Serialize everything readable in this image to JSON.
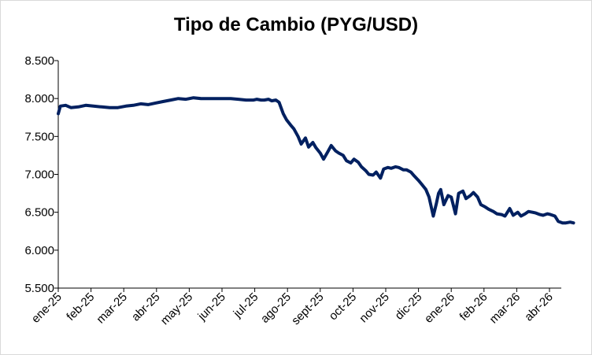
{
  "chart_data": {
    "type": "line",
    "title": "Tipo de Cambio (PYG/USD)",
    "xlabel": "",
    "ylabel": "",
    "ylim": [
      5500,
      8500
    ],
    "yticks": [
      5500,
      6000,
      6500,
      7000,
      7500,
      8000,
      8500
    ],
    "ytick_labels": [
      "5.500",
      "6.000",
      "6.500",
      "7.000",
      "7.500",
      "8.000",
      "8.500"
    ],
    "xtick_labels": [
      "ene-25",
      "feb-25",
      "mar-25",
      "abr-25",
      "may-25",
      "jun-25",
      "jul-25",
      "ago-25",
      "sept-25",
      "oct-25",
      "nov-25",
      "dic-25",
      "ene-26",
      "feb-26",
      "mar-26",
      "abr-26"
    ],
    "grid": false,
    "legend": "none",
    "line_color": "#002060",
    "series": [
      {
        "x": [
          "2025-01-01",
          "2025-01-03",
          "2025-01-08",
          "2025-01-13",
          "2025-01-20",
          "2025-01-27",
          "2025-02-03",
          "2025-02-10",
          "2025-02-17",
          "2025-02-24",
          "2025-03-03",
          "2025-03-10",
          "2025-03-17",
          "2025-03-24",
          "2025-03-31",
          "2025-04-07",
          "2025-04-14",
          "2025-04-21",
          "2025-04-28",
          "2025-05-05",
          "2025-05-12",
          "2025-05-19",
          "2025-05-26",
          "2025-06-02",
          "2025-06-09",
          "2025-06-16",
          "2025-06-23",
          "2025-06-30",
          "2025-07-03",
          "2025-07-07",
          "2025-07-10",
          "2025-07-14",
          "2025-07-17",
          "2025-07-21",
          "2025-07-24",
          "2025-07-28",
          "2025-07-31",
          "2025-08-04",
          "2025-08-07",
          "2025-08-11",
          "2025-08-14",
          "2025-08-18",
          "2025-08-21",
          "2025-08-25",
          "2025-08-28",
          "2025-09-01",
          "2025-09-04",
          "2025-09-08",
          "2025-09-11",
          "2025-09-15",
          "2025-09-18",
          "2025-09-22",
          "2025-09-25",
          "2025-09-29",
          "2025-10-02",
          "2025-10-06",
          "2025-10-09",
          "2025-10-13",
          "2025-10-16",
          "2025-10-20",
          "2025-10-23",
          "2025-10-27",
          "2025-10-30",
          "2025-11-03",
          "2025-11-06",
          "2025-11-10",
          "2025-11-13",
          "2025-11-17",
          "2025-11-20",
          "2025-11-24",
          "2025-11-27",
          "2025-12-01",
          "2025-12-04",
          "2025-12-08",
          "2025-12-11",
          "2025-12-15",
          "2025-12-18",
          "2025-12-20",
          "2025-12-22",
          "2025-12-25",
          "2025-12-29",
          "2026-01-01",
          "2026-01-05",
          "2026-01-08",
          "2026-01-12",
          "2026-01-15",
          "2026-01-19",
          "2026-01-22",
          "2026-01-26",
          "2026-01-29",
          "2026-02-02",
          "2026-02-05",
          "2026-02-09",
          "2026-02-12",
          "2026-02-16",
          "2026-02-19",
          "2026-02-23",
          "2026-02-26",
          "2026-03-02",
          "2026-03-05",
          "2026-03-09",
          "2026-03-12",
          "2026-03-16",
          "2026-03-19",
          "2026-03-23",
          "2026-03-26",
          "2026-03-30",
          "2026-04-02",
          "2026-04-06",
          "2026-04-09",
          "2026-04-13",
          "2026-04-16",
          "2026-04-20",
          "2026-04-23"
        ],
        "y": [
          7800,
          7900,
          7910,
          7880,
          7890,
          7910,
          7900,
          7890,
          7880,
          7880,
          7900,
          7910,
          7930,
          7920,
          7940,
          7960,
          7980,
          8000,
          7990,
          8010,
          8000,
          8000,
          8000,
          8000,
          8000,
          7990,
          7980,
          7980,
          7990,
          7980,
          7980,
          7990,
          7970,
          7980,
          7950,
          7800,
          7720,
          7650,
          7600,
          7500,
          7400,
          7480,
          7360,
          7420,
          7350,
          7280,
          7200,
          7300,
          7380,
          7310,
          7280,
          7250,
          7180,
          7150,
          7200,
          7160,
          7100,
          7050,
          7000,
          6990,
          7030,
          6950,
          7070,
          7090,
          7080,
          7100,
          7090,
          7060,
          7060,
          7030,
          6980,
          6920,
          6870,
          6800,
          6700,
          6450,
          6620,
          6750,
          6800,
          6600,
          6720,
          6700,
          6480,
          6750,
          6780,
          6680,
          6720,
          6760,
          6700,
          6600,
          6570,
          6540,
          6510,
          6480,
          6470,
          6450,
          6550,
          6460,
          6500,
          6450,
          6480,
          6510,
          6500,
          6490,
          6470,
          6460,
          6480,
          6470,
          6450,
          6380,
          6360,
          6360,
          6370,
          6360
        ]
      }
    ]
  }
}
